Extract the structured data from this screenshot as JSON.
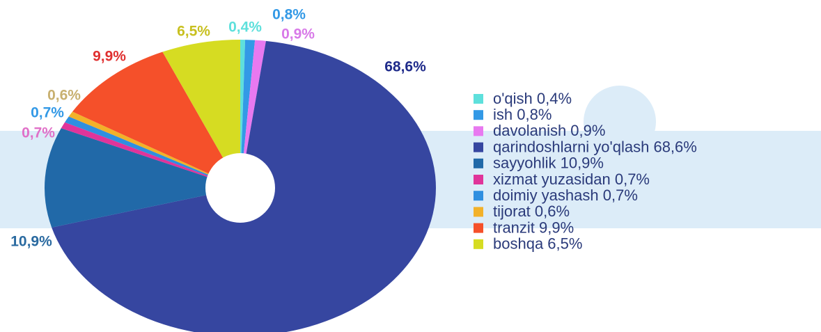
{
  "chart_data": {
    "type": "pie",
    "categories": [
      "o'qish 0,4%",
      "ish 0,8%",
      "davolanish 0,9%",
      "qarindoshlarni yo'qlash 68,6%",
      "sayyohlik 10,9%",
      "xizmat yuzasidan 0,7%",
      "doimiy yashash 0,7%",
      "tijorat 0,6%",
      "tranzit 9,9%",
      "boshqa 6,5%"
    ],
    "values": [
      0.4,
      0.8,
      0.9,
      68.6,
      10.9,
      0.7,
      0.7,
      0.6,
      9.9,
      6.5
    ],
    "value_labels": [
      "0,4%",
      "0,8%",
      "0,9%",
      "68,6%",
      "10,9%",
      "0,7%",
      "0,7%",
      "0,6%",
      "9,9%",
      "6,5%"
    ],
    "colors": [
      "#5ee0dc",
      "#3399e6",
      "#e879f0",
      "#3646a0",
      "#2169a8",
      "#e0349a",
      "#2f8fe0",
      "#f2b12a",
      "#f5502a",
      "#d6dc22"
    ],
    "legend": "right"
  }
}
